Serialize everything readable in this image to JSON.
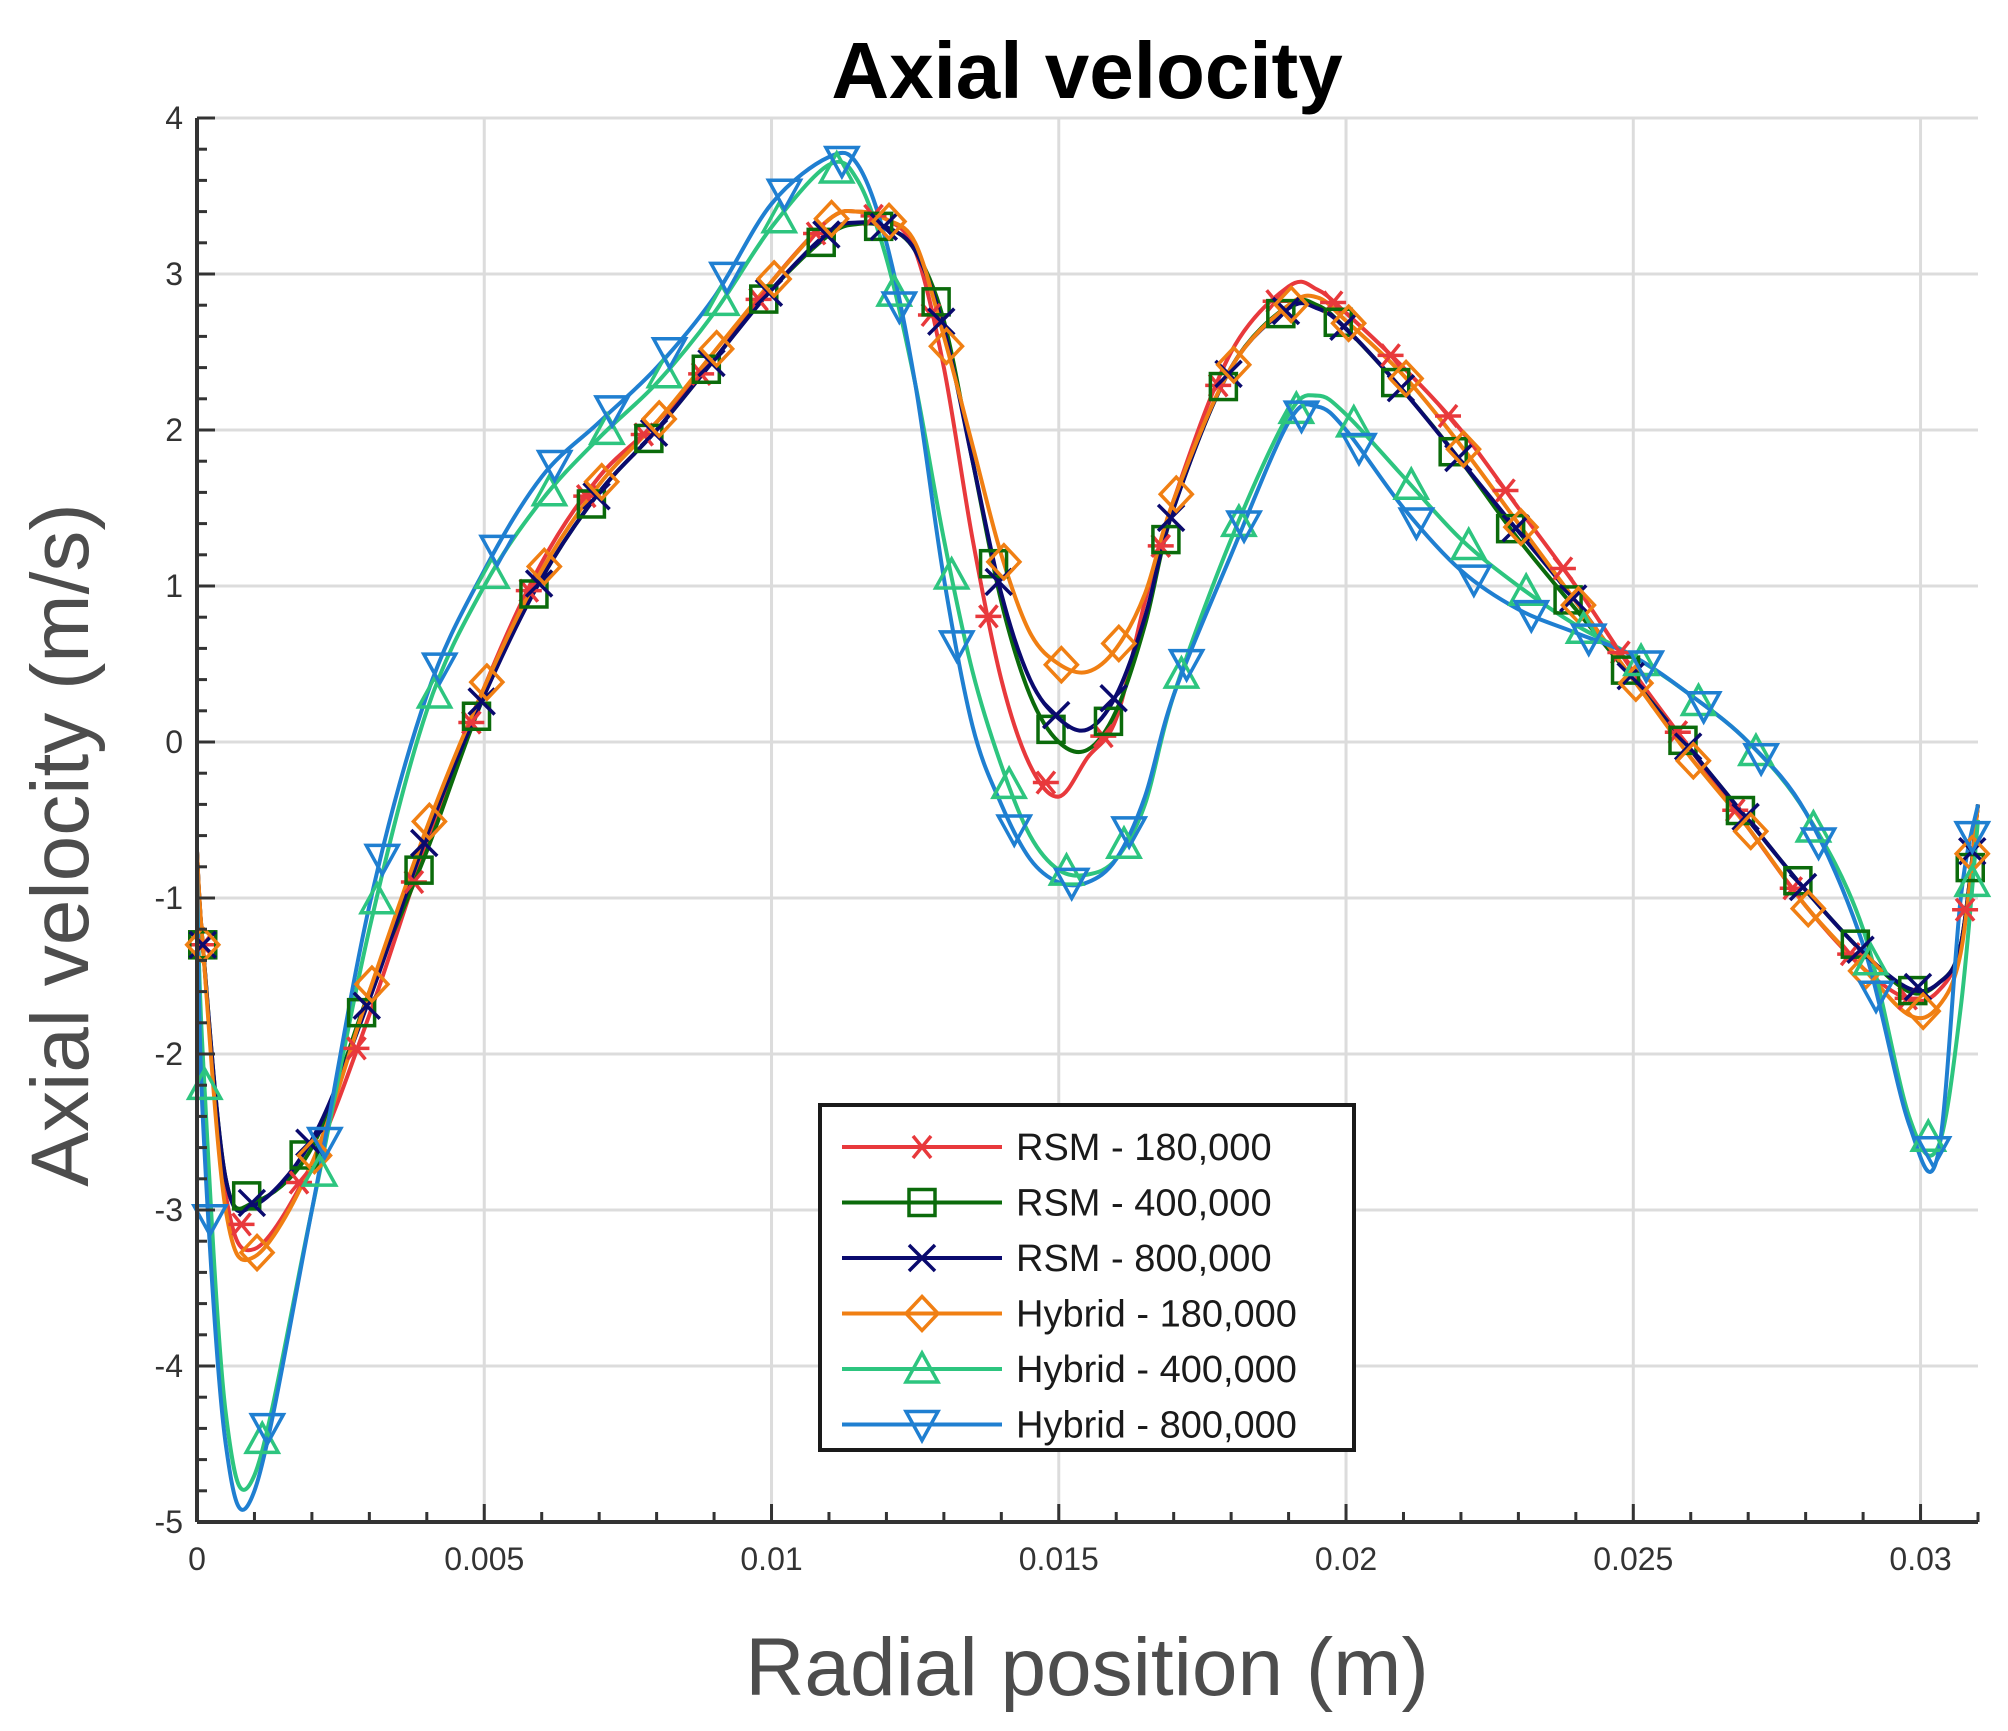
{
  "chart_data": {
    "type": "line",
    "title": "Axial velocity",
    "xlabel": "Radial position (m)",
    "ylabel": "Axial velocity (m/s)",
    "xlim": [
      0,
      0.031
    ],
    "ylim": [
      -5,
      4
    ],
    "xticks": [
      0,
      0.005,
      0.01,
      0.015,
      0.02,
      0.025,
      0.03
    ],
    "xtick_labels": [
      "0",
      "0.005",
      "0.01",
      "0.015",
      "0.02",
      "0.025",
      "0.03"
    ],
    "yticks": [
      -5,
      -4,
      -3,
      -2,
      -1,
      0,
      1,
      2,
      3,
      4
    ],
    "ytick_labels": [
      "-5",
      "-4",
      "-3",
      "-2",
      "-1",
      "0",
      "1",
      "2",
      "3",
      "4"
    ],
    "grid": true,
    "legend_position": "bottom-center",
    "series": [
      {
        "name": "RSM - 180,000",
        "color": "#e8393c",
        "marker": "asterisk",
        "x": [
          0,
          0.0001,
          0.0005,
          0.001,
          0.002,
          0.003,
          0.004,
          0.005,
          0.006,
          0.007,
          0.008,
          0.009,
          0.01,
          0.011,
          0.0115,
          0.012,
          0.0125,
          0.013,
          0.0135,
          0.014,
          0.0145,
          0.015,
          0.0155,
          0.016,
          0.0165,
          0.017,
          0.018,
          0.019,
          0.0195,
          0.02,
          0.021,
          0.022,
          0.023,
          0.024,
          0.025,
          0.026,
          0.027,
          0.028,
          0.029,
          0.0298,
          0.0303,
          0.0307,
          0.031
        ],
        "y": [
          -0.7,
          -1.3,
          -2.9,
          -3.25,
          -2.7,
          -1.75,
          -0.65,
          0.35,
          1.15,
          1.7,
          2.05,
          2.45,
          2.95,
          3.35,
          3.4,
          3.35,
          3.15,
          2.4,
          1.3,
          0.4,
          -0.15,
          -0.35,
          -0.1,
          0.15,
          0.9,
          1.55,
          2.5,
          2.92,
          2.9,
          2.75,
          2.4,
          2.0,
          1.5,
          1.0,
          0.45,
          -0.05,
          -0.55,
          -1.05,
          -1.45,
          -1.65,
          -1.6,
          -1.3,
          -0.4
        ]
      },
      {
        "name": "RSM - 400,000",
        "color": "#0b6b0b",
        "marker": "square",
        "x": [
          0,
          0.0001,
          0.0005,
          0.001,
          0.002,
          0.003,
          0.004,
          0.005,
          0.006,
          0.007,
          0.008,
          0.009,
          0.01,
          0.011,
          0.0115,
          0.012,
          0.0125,
          0.013,
          0.0135,
          0.014,
          0.0145,
          0.015,
          0.0155,
          0.016,
          0.0165,
          0.017,
          0.018,
          0.019,
          0.0195,
          0.02,
          0.021,
          0.022,
          0.023,
          0.024,
          0.025,
          0.026,
          0.027,
          0.028,
          0.029,
          0.0298,
          0.0303,
          0.0307,
          0.031
        ],
        "y": [
          -0.7,
          -1.3,
          -2.8,
          -2.95,
          -2.6,
          -1.6,
          -0.7,
          0.3,
          1.05,
          1.6,
          2.0,
          2.45,
          2.9,
          3.25,
          3.32,
          3.3,
          3.15,
          2.7,
          1.8,
          0.9,
          0.3,
          0.0,
          -0.05,
          0.2,
          0.75,
          1.5,
          2.4,
          2.8,
          2.8,
          2.65,
          2.25,
          1.8,
          1.3,
          0.85,
          0.4,
          -0.05,
          -0.5,
          -0.95,
          -1.35,
          -1.6,
          -1.55,
          -1.3,
          -0.4
        ]
      },
      {
        "name": "RSM - 800,000",
        "color": "#0a0a6e",
        "marker": "cross",
        "x": [
          0,
          0.0001,
          0.0005,
          0.001,
          0.002,
          0.003,
          0.004,
          0.005,
          0.006,
          0.007,
          0.008,
          0.009,
          0.01,
          0.011,
          0.0115,
          0.012,
          0.0125,
          0.013,
          0.0135,
          0.014,
          0.0145,
          0.015,
          0.0155,
          0.016,
          0.0165,
          0.017,
          0.018,
          0.019,
          0.0195,
          0.02,
          0.021,
          0.022,
          0.023,
          0.024,
          0.025,
          0.026,
          0.027,
          0.028,
          0.029,
          0.0298,
          0.0303,
          0.0307,
          0.031
        ],
        "y": [
          -0.7,
          -1.3,
          -2.8,
          -2.97,
          -2.55,
          -1.65,
          -0.6,
          0.3,
          1.05,
          1.6,
          2.0,
          2.45,
          2.9,
          3.27,
          3.33,
          3.3,
          3.15,
          2.65,
          1.8,
          0.95,
          0.4,
          0.15,
          0.08,
          0.3,
          0.8,
          1.5,
          2.4,
          2.78,
          2.78,
          2.65,
          2.25,
          1.8,
          1.35,
          0.9,
          0.4,
          -0.05,
          -0.5,
          -0.95,
          -1.35,
          -1.58,
          -1.55,
          -1.3,
          -0.4
        ]
      },
      {
        "name": "Hybrid - 180,000",
        "color": "#f07f13",
        "marker": "diamond",
        "x": [
          0,
          0.0001,
          0.0005,
          0.001,
          0.002,
          0.003,
          0.004,
          0.005,
          0.006,
          0.007,
          0.008,
          0.009,
          0.01,
          0.011,
          0.0115,
          0.012,
          0.0125,
          0.013,
          0.0135,
          0.014,
          0.0145,
          0.015,
          0.0155,
          0.016,
          0.0165,
          0.017,
          0.018,
          0.019,
          0.0195,
          0.02,
          0.021,
          0.022,
          0.023,
          0.024,
          0.025,
          0.026,
          0.027,
          0.028,
          0.029,
          0.0298,
          0.0303,
          0.0307,
          0.031
        ],
        "y": [
          -0.7,
          -1.3,
          -3.0,
          -3.3,
          -2.7,
          -1.6,
          -0.55,
          0.35,
          1.1,
          1.65,
          2.05,
          2.5,
          2.95,
          3.35,
          3.4,
          3.35,
          3.2,
          2.6,
          1.9,
          1.2,
          0.7,
          0.5,
          0.45,
          0.6,
          0.95,
          1.55,
          2.4,
          2.8,
          2.85,
          2.7,
          2.35,
          1.9,
          1.4,
          0.9,
          0.4,
          -0.1,
          -0.55,
          -1.05,
          -1.45,
          -1.75,
          -1.7,
          -1.35,
          -0.4
        ]
      },
      {
        "name": "Hybrid - 400,000",
        "color": "#2dc57f",
        "marker": "triangle-up",
        "x": [
          0,
          0.0001,
          0.0005,
          0.001,
          0.002,
          0.003,
          0.004,
          0.005,
          0.006,
          0.007,
          0.008,
          0.009,
          0.01,
          0.011,
          0.0115,
          0.012,
          0.0125,
          0.013,
          0.0135,
          0.014,
          0.0145,
          0.015,
          0.0155,
          0.016,
          0.0165,
          0.017,
          0.018,
          0.019,
          0.0195,
          0.02,
          0.021,
          0.022,
          0.023,
          0.024,
          0.025,
          0.026,
          0.027,
          0.028,
          0.029,
          0.0298,
          0.0303,
          0.0307,
          0.031
        ],
        "y": [
          -0.9,
          -2.0,
          -4.3,
          -4.7,
          -3.0,
          -1.2,
          0.2,
          1.0,
          1.55,
          1.95,
          2.3,
          2.75,
          3.3,
          3.7,
          3.6,
          3.1,
          2.3,
          1.3,
          0.45,
          -0.15,
          -0.6,
          -0.82,
          -0.85,
          -0.75,
          -0.4,
          0.3,
          1.3,
          2.1,
          2.22,
          2.1,
          1.7,
          1.3,
          1.0,
          0.75,
          0.55,
          0.3,
          0.0,
          -0.45,
          -1.2,
          -2.4,
          -2.6,
          -1.7,
          -0.5
        ]
      },
      {
        "name": "Hybrid - 800,000",
        "color": "#1f7fd1",
        "marker": "triangle-down",
        "x": [
          0,
          0.0001,
          0.0005,
          0.001,
          0.002,
          0.003,
          0.004,
          0.005,
          0.006,
          0.007,
          0.008,
          0.009,
          0.01,
          0.011,
          0.0115,
          0.012,
          0.0125,
          0.013,
          0.0135,
          0.014,
          0.0145,
          0.015,
          0.0155,
          0.016,
          0.0165,
          0.017,
          0.018,
          0.019,
          0.0195,
          0.02,
          0.021,
          0.022,
          0.023,
          0.024,
          0.025,
          0.026,
          0.027,
          0.028,
          0.029,
          0.0298,
          0.0303,
          0.0307,
          0.031
        ],
        "y": [
          -0.8,
          -2.4,
          -4.5,
          -4.8,
          -3.0,
          -1.05,
          0.3,
          1.1,
          1.7,
          2.05,
          2.4,
          2.85,
          3.45,
          3.75,
          3.7,
          3.2,
          2.3,
          1.05,
          0.1,
          -0.4,
          -0.75,
          -0.9,
          -0.9,
          -0.75,
          -0.35,
          0.3,
          1.2,
          2.05,
          2.15,
          2.0,
          1.5,
          1.1,
          0.85,
          0.7,
          0.55,
          0.3,
          0.0,
          -0.45,
          -1.3,
          -2.45,
          -2.65,
          -1.0,
          -0.4
        ]
      }
    ]
  }
}
